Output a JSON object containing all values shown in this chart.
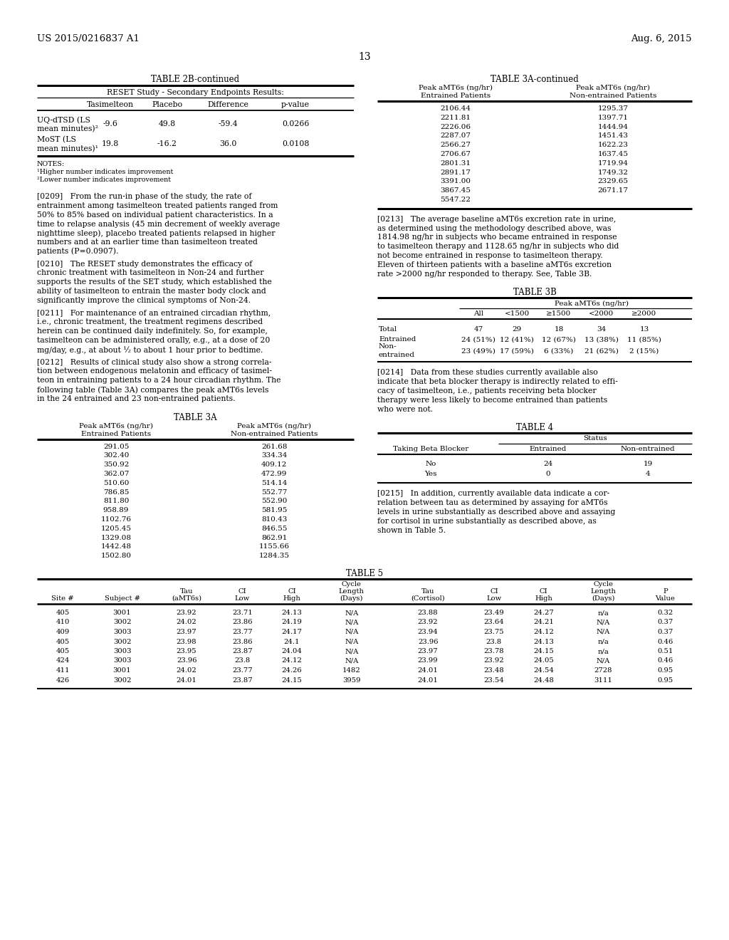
{
  "bg_color": "#ffffff",
  "header_left": "US 2015/0216837 A1",
  "header_right": "Aug. 6, 2015",
  "page_number": "13",
  "table2b_title": "TABLE 2B-continued",
  "table2b_subtitle": "RESET Study - Secondary Endpoints Results:",
  "table2b_col_headers": [
    "Tasimelteon",
    "Placebo",
    "Difference",
    "p-value"
  ],
  "table2b_rows": [
    [
      "UQ-dTSD (LS",
      "-9.6",
      "49.8",
      "-59.4",
      "0.0266"
    ],
    [
      "mean minutes)²",
      "",
      "",
      "",
      ""
    ],
    [
      "MoST (LS",
      "19.8",
      "-16.2",
      "36.0",
      "0.0108"
    ],
    [
      "mean minutes)¹",
      "",
      "",
      "",
      ""
    ]
  ],
  "table2b_notes": [
    "NOTES:",
    "¹Higher number indicates improvement",
    "²Lower number indicates improvement"
  ],
  "table3a_cont_title": "TABLE 3A-continued",
  "table3a_cont_data": [
    [
      "2106.44",
      "1295.37"
    ],
    [
      "2211.81",
      "1397.71"
    ],
    [
      "2226.06",
      "1444.94"
    ],
    [
      "2287.07",
      "1451.43"
    ],
    [
      "2566.27",
      "1622.23"
    ],
    [
      "2706.67",
      "1637.45"
    ],
    [
      "2801.31",
      "1719.94"
    ],
    [
      "2891.17",
      "1749.32"
    ],
    [
      "3391.00",
      "2329.65"
    ],
    [
      "3867.45",
      "2671.17"
    ],
    [
      "5547.22",
      ""
    ]
  ],
  "para209_lines": [
    "[0209]   From the run-in phase of the study, the rate of",
    "entrainment among tasimelteon treated patients ranged from",
    "50% to 85% based on individual patient characteristics. In a",
    "time to relapse analysis (45 min decrement of weekly average",
    "nighttime sleep), placebo treated patients relapsed in higher",
    "numbers and at an earlier time than tasimelteon treated",
    "patients (P=0.0907)."
  ],
  "para210_lines": [
    "[0210]   The RESET study demonstrates the efficacy of",
    "chronic treatment with tasimelteon in Non-24 and further",
    "supports the results of the SET study, which established the",
    "ability of tasimelteon to entrain the master body clock and",
    "significantly improve the clinical symptoms of Non-24."
  ],
  "para211_lines": [
    "[0211]   For maintenance of an entrained circadian rhythm,",
    "i.e., chronic treatment, the treatment regimens described",
    "herein can be continued daily indefinitely. So, for example,",
    "tasimelteon can be administered orally, e.g., at a dose of 20",
    "mg/day, e.g., at about ½ to about 1 hour prior to bedtime."
  ],
  "para212_lines": [
    "[0212]   Results of clinical study also show a strong correla-",
    "tion between endogenous melatonin and efficacy of tasimel-",
    "teon in entraining patients to a 24 hour circadian rhythm. The",
    "following table (Table 3A) compares the peak aMT6s levels",
    "in the 24 entrained and 23 non-entrained patients."
  ],
  "table3a_title": "TABLE 3A",
  "table3a_data": [
    [
      "291.05",
      "261.68"
    ],
    [
      "302.40",
      "334.34"
    ],
    [
      "350.92",
      "409.12"
    ],
    [
      "362.07",
      "472.99"
    ],
    [
      "510.60",
      "514.14"
    ],
    [
      "786.85",
      "552.77"
    ],
    [
      "811.80",
      "552.90"
    ],
    [
      "958.89",
      "581.95"
    ],
    [
      "1102.76",
      "810.43"
    ],
    [
      "1205.45",
      "846.55"
    ],
    [
      "1329.08",
      "862.91"
    ],
    [
      "1442.48",
      "1155.66"
    ],
    [
      "1502.80",
      "1284.35"
    ]
  ],
  "para213_lines": [
    "[0213]   The average baseline aMT6s excretion rate in urine,",
    "as determined using the methodology described above, was",
    "1814.98 ng/hr in subjects who became entrained in response",
    "to tasimelteon therapy and 1128.65 ng/hr in subjects who did",
    "not become entrained in response to tasimelteon therapy.",
    "Eleven of thirteen patients with a baseline aMT6s excretion",
    "rate >2000 ng/hr responded to therapy. See, Table 3B."
  ],
  "table3b_title": "TABLE 3B",
  "table3b_subheaders": [
    "All",
    "<1500",
    "≥1500",
    "<2000",
    "≥2000"
  ],
  "table3b_rows": [
    [
      "Total",
      "47",
      "29",
      "18",
      "34",
      "13"
    ],
    [
      "Entrained",
      "24 (51%)",
      "12 (41%)",
      "12 (67%)",
      "13 (38%)",
      "11 (85%)"
    ],
    [
      "Non-",
      "23 (49%)",
      "17 (59%)",
      "6 (33%)",
      "21 (62%)",
      "2 (15%)"
    ],
    [
      "entrained",
      "",
      "",
      "",
      "",
      ""
    ]
  ],
  "para214_lines": [
    "[0214]   Data from these studies currently available also",
    "indicate that beta blocker therapy is indirectly related to effi-",
    "cacy of tasimelteon, i.e., patients receiving beta blocker",
    "therapy were less likely to become entrained than patients",
    "who were not."
  ],
  "table4_title": "TABLE 4",
  "table4_rows": [
    [
      "No",
      "24",
      "19"
    ],
    [
      "Yes",
      "0",
      "4"
    ]
  ],
  "para215_lines": [
    "[0215]   In addition, currently available data indicate a cor-",
    "relation between tau as determined by assaying for aMT6s",
    "levels in urine substantially as described above and assaying",
    "for cortisol in urine substantially as described above, as",
    "shown in Table 5."
  ],
  "table5_title": "TABLE 5",
  "table5_rows": [
    [
      "405",
      "3001",
      "23.92",
      "23.71",
      "24.13",
      "N/A",
      "23.88",
      "23.49",
      "24.27",
      "n/a",
      "0.32"
    ],
    [
      "410",
      "3002",
      "24.02",
      "23.86",
      "24.19",
      "N/A",
      "23.92",
      "23.64",
      "24.21",
      "N/A",
      "0.37"
    ],
    [
      "409",
      "3003",
      "23.97",
      "23.77",
      "24.17",
      "N/A",
      "23.94",
      "23.75",
      "24.12",
      "N/A",
      "0.37"
    ],
    [
      "405",
      "3002",
      "23.98",
      "23.86",
      "24.1",
      "N/A",
      "23.96",
      "23.8",
      "24.13",
      "n/a",
      "0.46"
    ],
    [
      "405",
      "3003",
      "23.95",
      "23.87",
      "24.04",
      "N/A",
      "23.97",
      "23.78",
      "24.15",
      "n/a",
      "0.51"
    ],
    [
      "424",
      "3003",
      "23.96",
      "23.8",
      "24.12",
      "N/A",
      "23.99",
      "23.92",
      "24.05",
      "N/A",
      "0.46"
    ],
    [
      "411",
      "3001",
      "24.02",
      "23.77",
      "24.26",
      "1482",
      "24.01",
      "23.48",
      "24.54",
      "2728",
      "0.95"
    ],
    [
      "426",
      "3002",
      "24.01",
      "23.87",
      "24.15",
      "3959",
      "24.01",
      "23.54",
      "24.48",
      "3111",
      "0.95"
    ]
  ]
}
